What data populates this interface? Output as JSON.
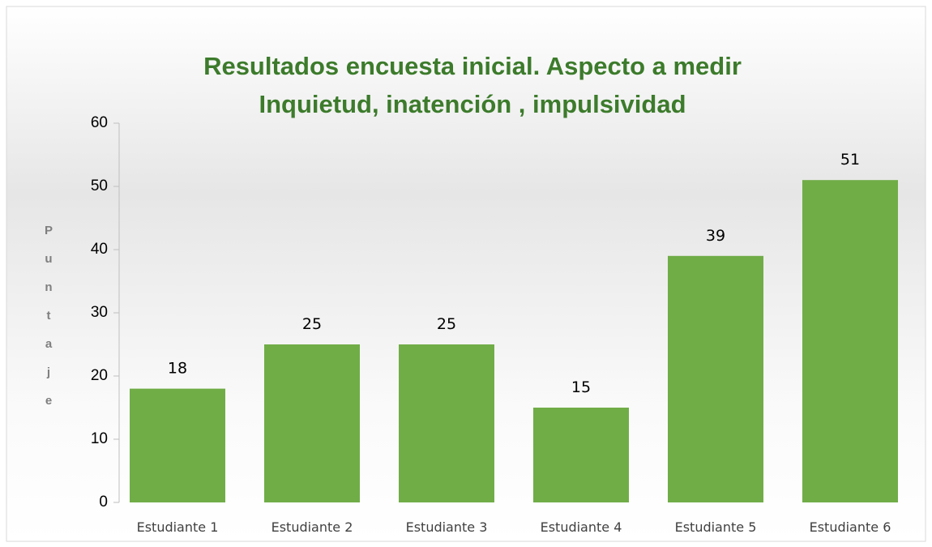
{
  "chart_data": {
    "type": "bar",
    "title": [
      "Resultados encuesta inicial. Aspecto a medir",
      "Inquietud, inatención , impulsividad"
    ],
    "y_label": "Puntaje",
    "categories": [
      "Estudiante 1",
      "Estudiante 2",
      "Estudiante 3",
      "Estudiante 4",
      "Estudiante 5",
      "Estudiante 6"
    ],
    "values": [
      18,
      25,
      25,
      15,
      39,
      51
    ],
    "color": "#70ad47",
    "ylim": [
      0,
      60
    ],
    "yticks": [
      0,
      10,
      20,
      30,
      40,
      50,
      60
    ],
    "grid": false,
    "data_labels": true
  }
}
